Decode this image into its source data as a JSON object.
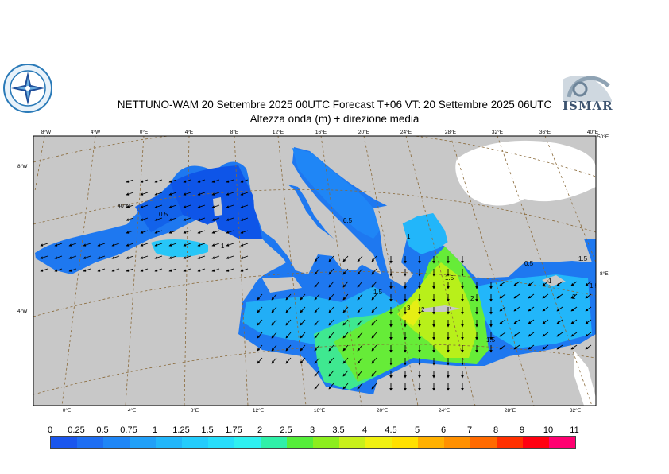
{
  "header": {
    "title_line1": "NETTUNO-WAM  20 Settembre 2025 00UTC Forecast T+06 VT: 20 Settembre 2025 06UTC",
    "title_line2": "Altezza onda (m) + direzione media"
  },
  "logos": {
    "left_icon": "compass-rose-seal-icon",
    "right_icon": "ismar-logo-icon",
    "right_text": "ISMAR"
  },
  "map": {
    "top_ticks": [
      "8°W",
      "4°W",
      "0°E",
      "4°E",
      "8°E",
      "12°E",
      "16°E",
      "20°E",
      "24°E",
      "28°E",
      "32°E",
      "36°E",
      "40°E"
    ],
    "bottom_ticks": [
      "0°E",
      "4°E",
      "8°E",
      "12°E",
      "16°E",
      "20°E",
      "24°E",
      "28°E",
      "32°E"
    ],
    "left_ticks": [
      "8°W",
      "4°W"
    ],
    "right_ticks": [
      "50°E",
      "8°E"
    ],
    "inner_label": "40°N",
    "contour_labels": [
      "0.5",
      "1",
      "0.5",
      "1",
      "1.5",
      "2",
      "3",
      "2",
      "1.5",
      "1.5",
      "0.5",
      "1",
      "1.5",
      "2",
      "1.5"
    ]
  },
  "legend": {
    "labels": [
      "0",
      "0.25",
      "0.5",
      "0.75",
      "1",
      "1.25",
      "1.5",
      "1.75",
      "2",
      "2.5",
      "3",
      "3.5",
      "4",
      "4.5",
      "5",
      "6",
      "7",
      "8",
      "9",
      "10",
      "11"
    ],
    "colors": [
      "#1a56ee",
      "#1e6ef2",
      "#1f86f6",
      "#21a0f8",
      "#22b6fa",
      "#24ccfc",
      "#27defb",
      "#2ef0f0",
      "#2ff0a8",
      "#55ee3a",
      "#8cee1e",
      "#c8f01a",
      "#f0f010",
      "#ffe000",
      "#ffb000",
      "#ff9000",
      "#ff6a00",
      "#ff3000",
      "#ff0010",
      "#ff0070",
      "#ff00c8"
    ]
  }
}
